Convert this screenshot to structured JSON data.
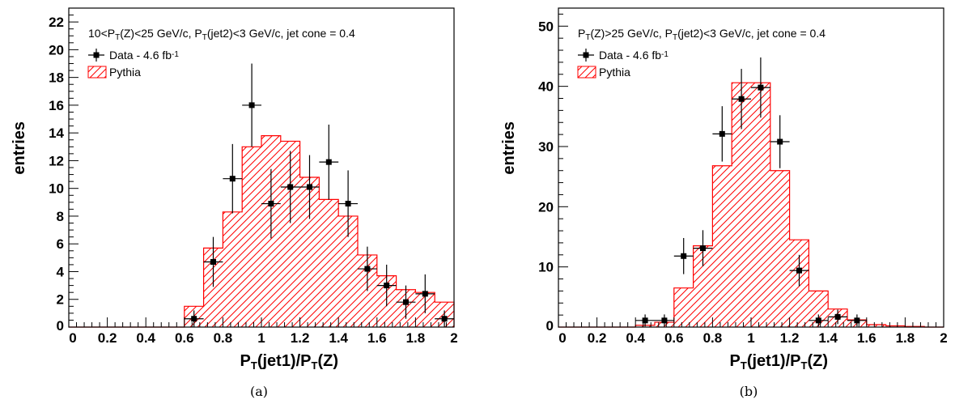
{
  "chart_data": [
    {
      "type": "histogram",
      "caption": "(a)",
      "annotation": {
        "main": "10<P",
        "sub_a": "T",
        "mid": "(Z)<25 GeV/c, P",
        "sub_b": "T",
        "tail": "(jet2)<3 GeV/c, jet cone = 0.4"
      },
      "xlabel": {
        "main": "P",
        "sub_a": "T",
        "mid": "(jet1)/P",
        "sub_b": "T",
        "tail": "(Z)"
      },
      "ylabel": "entries",
      "xlim": [
        0,
        2
      ],
      "ylim": [
        0,
        23
      ],
      "x_ticks": [
        "0",
        "0.2",
        "0.4",
        "0.6",
        "0.8",
        "1",
        "1.2",
        "1.4",
        "1.6",
        "1.8",
        "2"
      ],
      "y_ticks": [
        "0",
        "2",
        "4",
        "6",
        "8",
        "10",
        "12",
        "14",
        "16",
        "18",
        "20",
        "22"
      ],
      "legend": {
        "position": "top-left",
        "data_main": "Data - 4.6 fb",
        "data_sup": "-1",
        "mc": "Pythia"
      },
      "bin_edges": [
        0,
        0.1,
        0.2,
        0.3,
        0.4,
        0.5,
        0.6,
        0.7,
        0.8,
        0.9,
        1.0,
        1.1,
        1.2,
        1.3,
        1.4,
        1.5,
        1.6,
        1.7,
        1.8,
        1.9,
        2.0
      ],
      "pythia": [
        0,
        0,
        0,
        0,
        0,
        0,
        1.5,
        5.7,
        8.3,
        13.0,
        13.8,
        13.4,
        10.8,
        9.2,
        8.0,
        5.2,
        3.7,
        2.7,
        2.5,
        1.8
      ],
      "data": [
        {
          "x": 0.65,
          "y": 0.6,
          "err": 0.6
        },
        {
          "x": 0.75,
          "y": 4.7,
          "err": 1.8
        },
        {
          "x": 0.85,
          "y": 10.7,
          "err": 2.5
        },
        {
          "x": 0.95,
          "y": 16.0,
          "err": 3.0
        },
        {
          "x": 1.05,
          "y": 8.9,
          "err": 2.5
        },
        {
          "x": 1.15,
          "y": 10.1,
          "err": 2.6
        },
        {
          "x": 1.25,
          "y": 10.1,
          "err": 2.3
        },
        {
          "x": 1.35,
          "y": 11.9,
          "err": 2.7
        },
        {
          "x": 1.45,
          "y": 8.9,
          "err": 2.4
        },
        {
          "x": 1.55,
          "y": 4.2,
          "err": 1.6
        },
        {
          "x": 1.65,
          "y": 3.0,
          "err": 1.5
        },
        {
          "x": 1.75,
          "y": 1.8,
          "err": 1.2
        },
        {
          "x": 1.85,
          "y": 2.4,
          "err": 1.4
        },
        {
          "x": 1.95,
          "y": 0.6,
          "err": 0.6
        }
      ]
    },
    {
      "type": "histogram",
      "caption": "(b)",
      "annotation": {
        "main": "P",
        "sub_a": "T",
        "mid": "(Z)>25 GeV/c, P",
        "sub_b": "T",
        "tail": "(jet2)<3 GeV/c, jet cone = 0.4"
      },
      "xlabel": {
        "main": "P",
        "sub_a": "T",
        "mid": "(jet1)/P",
        "sub_b": "T",
        "tail": "(Z)"
      },
      "ylabel": "entries",
      "xlim": [
        0,
        2
      ],
      "ylim": [
        0,
        53
      ],
      "x_ticks": [
        "0",
        "0.2",
        "0.4",
        "0.6",
        "0.8",
        "1",
        "1.2",
        "1.4",
        "1.6",
        "1.8",
        "2"
      ],
      "y_ticks": [
        "0",
        "10",
        "20",
        "30",
        "40",
        "50"
      ],
      "legend": {
        "position": "top-left",
        "data_main": "Data - 4.6 fb",
        "data_sup": "-1",
        "mc": "Pythia"
      },
      "bin_edges": [
        0,
        0.1,
        0.2,
        0.3,
        0.4,
        0.5,
        0.6,
        0.7,
        0.8,
        0.9,
        1.0,
        1.1,
        1.2,
        1.3,
        1.4,
        1.5,
        1.6,
        1.7,
        1.8,
        1.9,
        2.0
      ],
      "pythia": [
        0,
        0,
        0,
        0,
        0.3,
        0.8,
        6.5,
        13.5,
        26.8,
        40.6,
        40.6,
        26.0,
        14.5,
        6.0,
        3.0,
        1.2,
        0.4,
        0.2,
        0.1,
        0
      ],
      "data": [
        {
          "x": 0.45,
          "y": 1.1,
          "err": 1.0
        },
        {
          "x": 0.55,
          "y": 1.1,
          "err": 1.0
        },
        {
          "x": 0.65,
          "y": 11.8,
          "err": 3.0
        },
        {
          "x": 0.75,
          "y": 13.1,
          "err": 3.0
        },
        {
          "x": 0.85,
          "y": 32.1,
          "err": 4.6
        },
        {
          "x": 0.95,
          "y": 37.9,
          "err": 5.0
        },
        {
          "x": 1.05,
          "y": 39.8,
          "err": 5.0
        },
        {
          "x": 1.15,
          "y": 30.8,
          "err": 4.4
        },
        {
          "x": 1.25,
          "y": 9.4,
          "err": 2.6
        },
        {
          "x": 1.35,
          "y": 1.1,
          "err": 1.0
        },
        {
          "x": 1.45,
          "y": 1.7,
          "err": 1.2
        },
        {
          "x": 1.55,
          "y": 1.1,
          "err": 1.0
        }
      ]
    }
  ]
}
